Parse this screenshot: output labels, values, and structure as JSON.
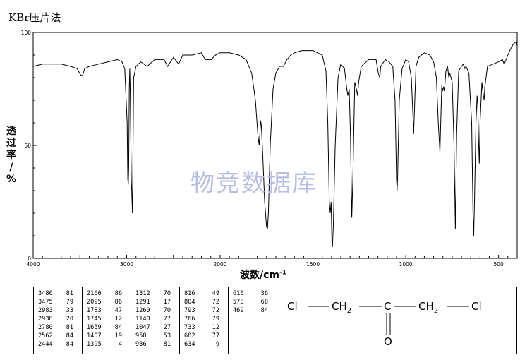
{
  "title": "KBr压片法",
  "watermark": "物竞数据库",
  "chart_data": {
    "type": "line",
    "title": "KBr压片法",
    "xlabel": "波数/cm",
    "xlabel_sup": "-1",
    "ylabel_chars": [
      "透",
      "过",
      "率",
      "/",
      "%"
    ],
    "xlim": [
      4000,
      400
    ],
    "ylim": [
      0,
      100
    ],
    "x_major_ticks": [
      4000,
      3000,
      2000,
      1500,
      1000,
      500
    ],
    "y_major_ticks": [
      0,
      50,
      100
    ],
    "grid": false,
    "series": [
      {
        "points": [
          [
            4000,
            85
          ],
          [
            3900,
            86
          ],
          [
            3800,
            86
          ],
          [
            3700,
            86
          ],
          [
            3600,
            85
          ],
          [
            3530,
            84
          ],
          [
            3490,
            81
          ],
          [
            3470,
            81
          ],
          [
            3450,
            84
          ],
          [
            3400,
            85
          ],
          [
            3300,
            86
          ],
          [
            3200,
            87
          ],
          [
            3100,
            88
          ],
          [
            3050,
            87
          ],
          [
            3020,
            84
          ],
          [
            2995,
            60
          ],
          [
            2988,
            35
          ],
          [
            2983,
            33
          ],
          [
            2978,
            40
          ],
          [
            2972,
            75
          ],
          [
            2967,
            84
          ],
          [
            2962,
            75
          ],
          [
            2950,
            35
          ],
          [
            2940,
            22
          ],
          [
            2938,
            20
          ],
          [
            2933,
            45
          ],
          [
            2925,
            80
          ],
          [
            2900,
            85
          ],
          [
            2850,
            87
          ],
          [
            2780,
            85
          ],
          [
            2700,
            88
          ],
          [
            2600,
            88
          ],
          [
            2562,
            85
          ],
          [
            2500,
            89
          ],
          [
            2444,
            86
          ],
          [
            2400,
            90
          ],
          [
            2300,
            90
          ],
          [
            2200,
            91
          ],
          [
            2160,
            88
          ],
          [
            2095,
            88
          ],
          [
            2050,
            90
          ],
          [
            2000,
            91
          ],
          [
            1950,
            91
          ],
          [
            1900,
            90
          ],
          [
            1860,
            88
          ],
          [
            1830,
            82
          ],
          [
            1810,
            70
          ],
          [
            1797,
            55
          ],
          [
            1790,
            50
          ],
          [
            1786,
            55
          ],
          [
            1782,
            61
          ],
          [
            1778,
            59
          ],
          [
            1770,
            45
          ],
          [
            1760,
            25
          ],
          [
            1750,
            14
          ],
          [
            1745,
            13
          ],
          [
            1740,
            20
          ],
          [
            1730,
            50
          ],
          [
            1715,
            75
          ],
          [
            1700,
            82
          ],
          [
            1680,
            85
          ],
          [
            1659,
            85
          ],
          [
            1640,
            88
          ],
          [
            1620,
            90
          ],
          [
            1600,
            91
          ],
          [
            1560,
            92
          ],
          [
            1500,
            92
          ],
          [
            1450,
            90
          ],
          [
            1430,
            83
          ],
          [
            1420,
            60
          ],
          [
            1412,
            25
          ],
          [
            1407,
            20
          ],
          [
            1402,
            25
          ],
          [
            1398,
            8
          ],
          [
            1395,
            5
          ],
          [
            1390,
            15
          ],
          [
            1380,
            50
          ],
          [
            1365,
            80
          ],
          [
            1350,
            86
          ],
          [
            1330,
            84
          ],
          [
            1318,
            75
          ],
          [
            1312,
            72
          ],
          [
            1305,
            75
          ],
          [
            1298,
            55
          ],
          [
            1291,
            18
          ],
          [
            1285,
            35
          ],
          [
            1275,
            78
          ],
          [
            1266,
            75
          ],
          [
            1260,
            72
          ],
          [
            1254,
            78
          ],
          [
            1240,
            85
          ],
          [
            1200,
            88
          ],
          [
            1160,
            88
          ],
          [
            1148,
            82
          ],
          [
            1140,
            80
          ],
          [
            1135,
            85
          ],
          [
            1110,
            88
          ],
          [
            1090,
            87
          ],
          [
            1070,
            85
          ],
          [
            1058,
            70
          ],
          [
            1050,
            35
          ],
          [
            1047,
            30
          ],
          [
            1044,
            35
          ],
          [
            1035,
            70
          ],
          [
            1020,
            84
          ],
          [
            1000,
            88
          ],
          [
            985,
            87
          ],
          [
            970,
            80
          ],
          [
            960,
            60
          ],
          [
            958,
            55
          ],
          [
            955,
            62
          ],
          [
            945,
            85
          ],
          [
            930,
            89
          ],
          [
            900,
            91
          ],
          [
            870,
            90
          ],
          [
            850,
            87
          ],
          [
            835,
            80
          ],
          [
            825,
            60
          ],
          [
            816,
            47
          ],
          [
            810,
            65
          ],
          [
            806,
            77
          ],
          [
            802,
            74
          ],
          [
            796,
            76
          ],
          [
            792,
            74
          ],
          [
            784,
            83
          ],
          [
            775,
            85
          ],
          [
            768,
            80
          ],
          [
            763,
            82
          ],
          [
            750,
            78
          ],
          [
            740,
            50
          ],
          [
            733,
            13
          ],
          [
            726,
            55
          ],
          [
            715,
            83
          ],
          [
            700,
            85
          ],
          [
            690,
            86
          ],
          [
            682,
            84
          ],
          [
            675,
            85
          ],
          [
            660,
            82
          ],
          [
            645,
            60
          ],
          [
            638,
            20
          ],
          [
            634,
            10
          ],
          [
            630,
            25
          ],
          [
            622,
            60
          ],
          [
            616,
            72
          ],
          [
            612,
            68
          ],
          [
            608,
            52
          ],
          [
            604,
            42
          ],
          [
            600,
            60
          ],
          [
            590,
            78
          ],
          [
            582,
            72
          ],
          [
            578,
            70
          ],
          [
            574,
            76
          ],
          [
            560,
            85
          ],
          [
            530,
            86
          ],
          [
            500,
            87
          ],
          [
            480,
            88
          ],
          [
            470,
            86
          ],
          [
            460,
            88
          ],
          [
            440,
            92
          ],
          [
            420,
            95
          ],
          [
            405,
            96
          ],
          [
            400,
            94
          ]
        ]
      }
    ]
  },
  "peak_table": {
    "columns": [
      [
        [
          "3486",
          "81"
        ],
        [
          "3475",
          "79"
        ],
        [
          "2983",
          "33"
        ],
        [
          "2938",
          "20"
        ],
        [
          "2780",
          "81"
        ],
        [
          "2562",
          "84"
        ],
        [
          "2444",
          "84"
        ]
      ],
      [
        [
          "2160",
          "86"
        ],
        [
          "2095",
          "86"
        ],
        [
          "1783",
          "47"
        ],
        [
          "1745",
          "12"
        ],
        [
          "1659",
          "84"
        ],
        [
          "1407",
          "19"
        ],
        [
          "1395",
          "4"
        ]
      ],
      [
        [
          "1312",
          "70"
        ],
        [
          "1291",
          "17"
        ],
        [
          "1260",
          "70"
        ],
        [
          "1140",
          "77"
        ],
        [
          "1047",
          "27"
        ],
        [
          "958",
          "53"
        ],
        [
          "936",
          "81"
        ]
      ],
      [
        [
          "816",
          "49"
        ],
        [
          "804",
          "72"
        ],
        [
          "793",
          "72"
        ],
        [
          "766",
          "79"
        ],
        [
          "733",
          "12"
        ],
        [
          "682",
          "77"
        ],
        [
          "634",
          "9"
        ]
      ],
      [
        [
          "610",
          "36"
        ],
        [
          "578",
          "68"
        ],
        [
          "469",
          "84"
        ]
      ]
    ]
  },
  "structure": {
    "atoms": [
      "Cl",
      "CH",
      "2",
      "C",
      "CH",
      "2",
      "Cl",
      "O"
    ]
  }
}
